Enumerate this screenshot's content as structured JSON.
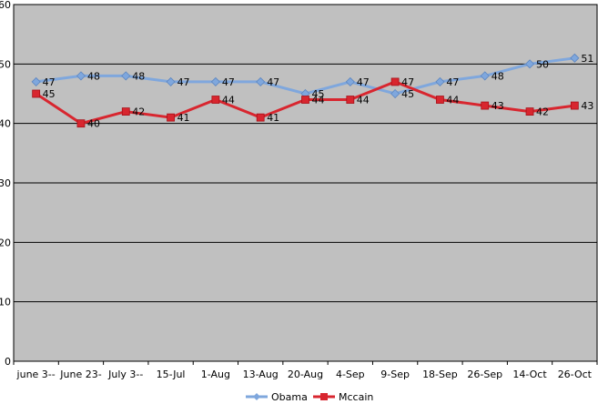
{
  "chart_data": {
    "type": "line",
    "categories": [
      "june 3--",
      "June 23-",
      "July 3--",
      "15-Jul",
      "1-Aug",
      "13-Aug",
      "20-Aug",
      "4-Sep",
      "9-Sep",
      "18-Sep",
      "26-Sep",
      "14-Oct",
      "26-Oct"
    ],
    "series": [
      {
        "name": "Obama",
        "values": [
          47,
          48,
          48,
          47,
          47,
          47,
          45,
          47,
          45,
          47,
          48,
          50,
          51
        ],
        "color": "#7fa7dd",
        "marker": "diamond"
      },
      {
        "name": "Mccain",
        "values": [
          45,
          40,
          42,
          41,
          44,
          41,
          44,
          44,
          47,
          44,
          43,
          42,
          43
        ],
        "color": "#d8262f",
        "marker": "square"
      }
    ],
    "ylim": [
      0,
      60
    ],
    "yticks": [
      0,
      10,
      20,
      30,
      40,
      50,
      60
    ],
    "grid": true,
    "legend": "bottom",
    "plot_background": "#c0c0c0"
  }
}
